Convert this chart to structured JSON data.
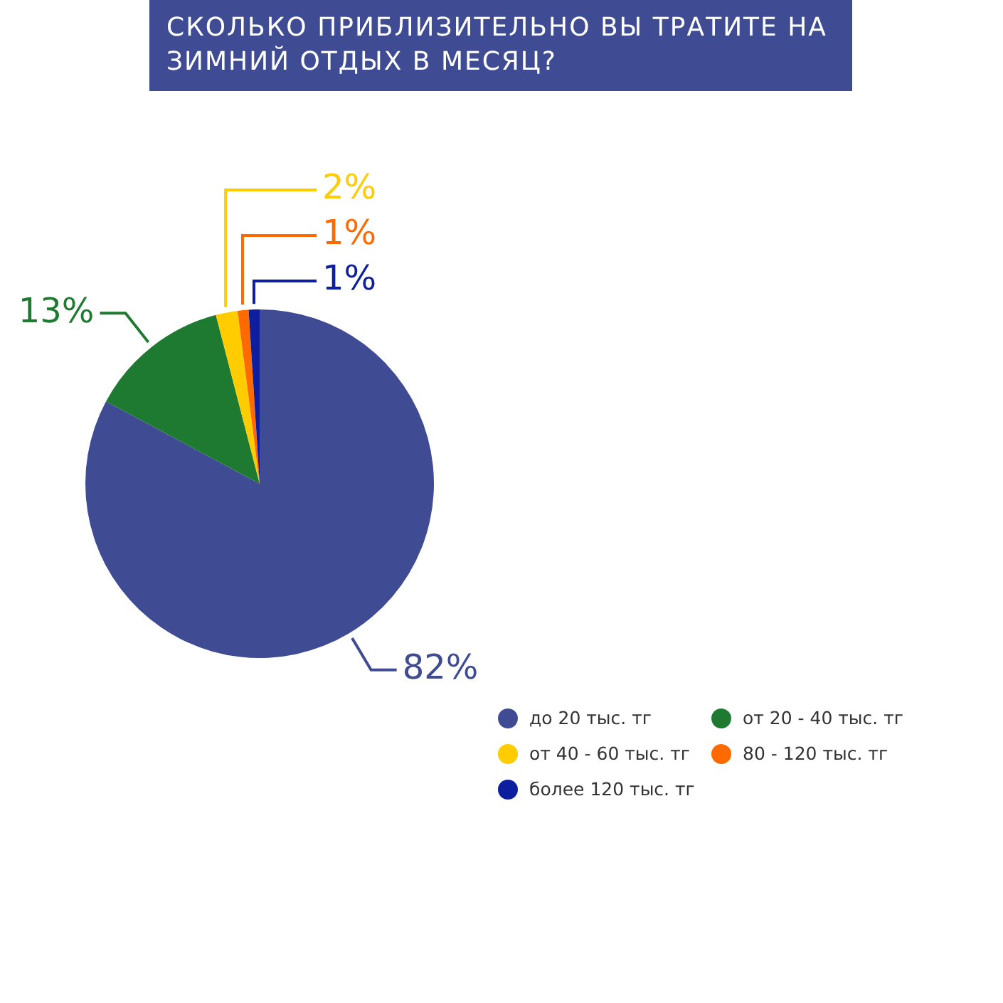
{
  "chart_data": {
    "type": "pie",
    "title": "СКОЛЬКО ПРИБЛИЗИТЕЛЬНО ВЫ ТРАТИТЕ НА ЗИМНИЙ ОТДЫХ В МЕСЯЦ?",
    "categories": [
      "до 20 тыс. тг",
      "от 20 - 40 тыс. тг",
      "от 40 - 60 тыс. тг",
      "80 - 120 тыс. тг",
      "более 120 тыс. тг"
    ],
    "values": [
      82,
      13,
      2,
      1,
      1
    ],
    "colors": [
      "#3f4b93",
      "#1f7a31",
      "#ffcc00",
      "#ff6a00",
      "#0d1f9e"
    ],
    "value_labels": [
      "82%",
      "13%",
      "2%",
      "1%",
      "1%"
    ],
    "legend": "bottom right"
  }
}
